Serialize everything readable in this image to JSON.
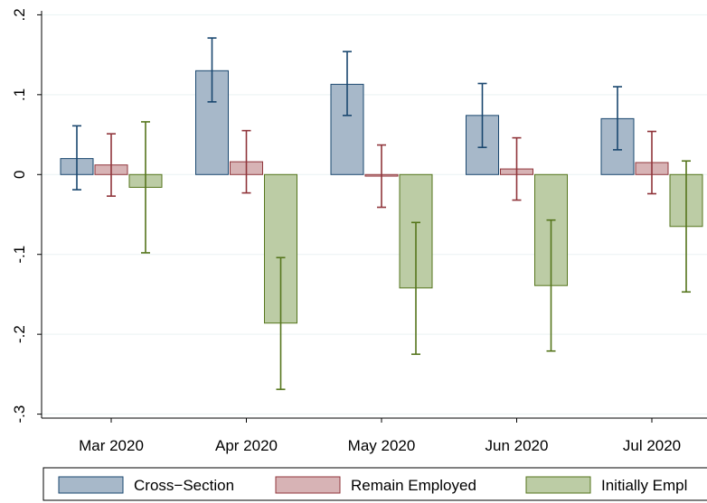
{
  "chart_data": {
    "type": "bar",
    "categories": [
      "Mar 2020",
      "Apr 2020",
      "May 2020",
      "Jun 2020",
      "Jul 2020"
    ],
    "y_ticks": [
      {
        "value": 0.2,
        "label": ".2"
      },
      {
        "value": 0.1,
        "label": ".1"
      },
      {
        "value": 0,
        "label": "0"
      },
      {
        "value": -0.1,
        "label": "-.1"
      },
      {
        "value": -0.2,
        "label": "-.2"
      },
      {
        "value": -0.3,
        "label": "-.3"
      }
    ],
    "ylim": [
      -0.305,
      0.205
    ],
    "grid": true,
    "legend_position": "bottom",
    "series": [
      {
        "name": "Cross−Section",
        "color": "#a7b8c9",
        "edge": "#1a476f",
        "values": [
          0.02,
          0.13,
          0.113,
          0.074,
          0.07
        ],
        "ci_low": [
          -0.019,
          0.091,
          0.074,
          0.034,
          0.031
        ],
        "ci_high": [
          0.061,
          0.171,
          0.154,
          0.114,
          0.11
        ]
      },
      {
        "name": "Remain Employed",
        "color": "#d7b3b5",
        "edge": "#90353b",
        "values": [
          0.012,
          0.016,
          -0.002,
          0.007,
          0.015
        ],
        "ci_low": [
          -0.027,
          -0.023,
          -0.041,
          -0.032,
          -0.024
        ],
        "ci_high": [
          0.051,
          0.055,
          0.037,
          0.046,
          0.054
        ]
      },
      {
        "name": "Initially Empl",
        "color": "#bccca5",
        "edge": "#55751c",
        "values": [
          -0.016,
          -0.186,
          -0.142,
          -0.139,
          -0.065
        ],
        "ci_low": [
          -0.098,
          -0.269,
          -0.225,
          -0.221,
          -0.147
        ],
        "ci_high": [
          0.066,
          -0.104,
          -0.06,
          -0.057,
          0.017
        ]
      }
    ]
  }
}
